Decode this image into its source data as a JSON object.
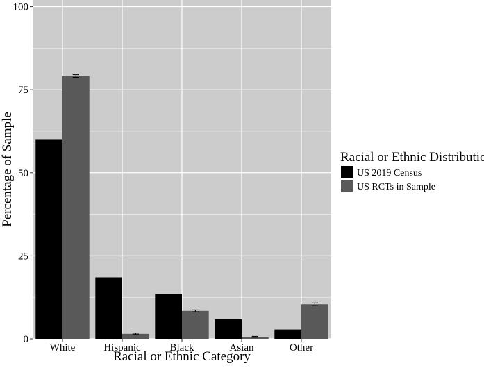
{
  "chart_data": {
    "type": "bar",
    "title": "",
    "xlabel": "Racial or Ethnic Category",
    "ylabel": "Percentage of Sample",
    "categories": [
      "White",
      "Hispanic",
      "Black",
      "Asian",
      "Other"
    ],
    "ylim": [
      0,
      102
    ],
    "yticks": [
      "0",
      "25",
      "50",
      "75",
      "100"
    ],
    "grid": true,
    "legend": {
      "title": "Racial or Ethnic Distribution",
      "placement": "right"
    },
    "series": [
      {
        "name": "US 2019 Census",
        "color": "#000000",
        "values": [
          60.1,
          18.5,
          13.4,
          5.9,
          2.8
        ],
        "error": null
      },
      {
        "name": "US RCTs in Sample",
        "color": "#595959",
        "values": [
          79.1,
          1.5,
          8.4,
          0.6,
          10.4
        ],
        "error": [
          0.4,
          0.2,
          0.3,
          0.15,
          0.4
        ]
      }
    ]
  },
  "colors": {
    "panel_background": "#cccccc",
    "grid": "#ffffff"
  }
}
